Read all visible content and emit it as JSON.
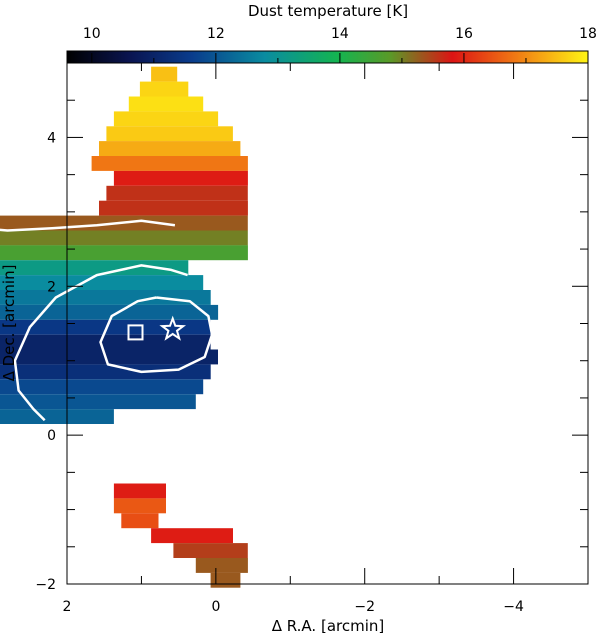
{
  "chart_data": {
    "type": "heatmap",
    "title": "",
    "colorbar": {
      "label": "Dust temperature [K]",
      "range": [
        9.6,
        18
      ],
      "ticks": [
        "10",
        "12",
        "14",
        "16",
        "18"
      ]
    },
    "xlabel": "Δ R.A. [arcmin]",
    "ylabel": "Δ Dec. [arcmin]",
    "xlim": [
      2,
      -5
    ],
    "ylim": [
      -2,
      5
    ],
    "xticks": [
      "2",
      "0",
      "−2",
      "−4"
    ],
    "yticks": [
      "−2",
      "0",
      "2",
      "4"
    ],
    "grid": false,
    "markers": [
      {
        "name": "star",
        "symbol": "star",
        "x": 0.58,
        "y": 1.42
      },
      {
        "name": "square",
        "symbol": "square",
        "x": 1.08,
        "y": 1.38
      }
    ],
    "contours": [
      {
        "level": "inner",
        "points": [
          [
            0.8,
            1.85
          ],
          [
            0.35,
            1.8
          ],
          [
            0.1,
            1.6
          ],
          [
            0.05,
            1.35
          ],
          [
            0.15,
            1.05
          ],
          [
            0.5,
            0.88
          ],
          [
            1.0,
            0.85
          ],
          [
            1.45,
            0.95
          ],
          [
            1.55,
            1.25
          ],
          [
            1.4,
            1.6
          ],
          [
            1.05,
            1.8
          ],
          [
            0.8,
            1.85
          ]
        ]
      },
      {
        "level": "middle",
        "points": [
          [
            0.38,
            2.15
          ],
          [
            0.6,
            2.22
          ],
          [
            1.0,
            2.28
          ],
          [
            1.6,
            2.15
          ],
          [
            2.15,
            1.85
          ],
          [
            2.5,
            1.45
          ],
          [
            2.7,
            1.0
          ],
          [
            2.65,
            0.6
          ],
          [
            2.45,
            0.35
          ],
          [
            2.3,
            0.2
          ]
        ]
      },
      {
        "level": "outer",
        "points": [
          [
            0.55,
            2.82
          ],
          [
            1.0,
            2.88
          ],
          [
            1.6,
            2.82
          ],
          [
            2.2,
            2.78
          ],
          [
            2.8,
            2.75
          ],
          [
            3.2,
            2.78
          ],
          [
            3.4,
            2.7
          ],
          [
            3.55,
            2.3
          ],
          [
            3.75,
            2.0
          ],
          [
            3.9,
            1.8
          ]
        ]
      }
    ],
    "cells": [
      {
        "x0": 0.52,
        "x1": 0.87,
        "y": 4.85,
        "v": 17.5
      },
      {
        "x0": 0.37,
        "x1": 1.02,
        "y": 4.65,
        "v": 17.7
      },
      {
        "x0": 0.17,
        "x1": 1.17,
        "y": 4.45,
        "v": 17.8
      },
      {
        "x0": -0.03,
        "x1": 1.37,
        "y": 4.25,
        "v": 17.7
      },
      {
        "x0": -0.23,
        "x1": 1.47,
        "y": 4.05,
        "v": 17.6
      },
      {
        "x0": -0.33,
        "x1": 1.57,
        "y": 3.85,
        "v": 17.3
      },
      {
        "x0": -0.43,
        "x1": 1.67,
        "y": 3.65,
        "v": 16.8
      },
      {
        "x0": -0.43,
        "x1": 1.37,
        "y": 3.45,
        "v": 15.9
      },
      {
        "x0": -0.43,
        "x1": 1.47,
        "y": 3.25,
        "v": 15.6
      },
      {
        "x0": -0.43,
        "x1": 1.57,
        "y": 3.05,
        "v": 15.6
      },
      {
        "x0": -0.43,
        "x1": 3.37,
        "y": 2.85,
        "v": 15.3
      },
      {
        "x0": -0.43,
        "x1": 3.57,
        "y": 2.65,
        "v": 15.0
      },
      {
        "x0": -0.43,
        "x1": 3.77,
        "y": 2.45,
        "v": 14.6
      },
      {
        "x0": 0.37,
        "x1": 3.87,
        "y": 2.25,
        "v": 13.2
      },
      {
        "x0": 0.17,
        "x1": 3.87,
        "y": 2.05,
        "v": 12.8
      },
      {
        "x0": 0.07,
        "x1": 3.77,
        "y": 1.85,
        "v": 12.5
      },
      {
        "x0": -0.03,
        "x1": 3.77,
        "y": 1.65,
        "v": 12.2
      },
      {
        "x0": 0.07,
        "x1": 3.67,
        "y": 1.45,
        "v": 11.5
      },
      {
        "x0": 0.07,
        "x1": 3.67,
        "y": 1.25,
        "v": 11.0
      },
      {
        "x0": -0.03,
        "x1": 3.57,
        "y": 1.05,
        "v": 11.0
      },
      {
        "x0": 0.07,
        "x1": 3.47,
        "y": 0.85,
        "v": 11.3
      },
      {
        "x0": 0.17,
        "x1": 3.37,
        "y": 0.65,
        "v": 11.8
      },
      {
        "x0": 0.27,
        "x1": 3.27,
        "y": 0.45,
        "v": 12.0
      },
      {
        "x0": 1.37,
        "x1": 3.07,
        "y": 0.25,
        "v": 12.2
      },
      {
        "x0": 0.67,
        "x1": 1.37,
        "y": -0.75,
        "v": 15.9
      },
      {
        "x0": 0.67,
        "x1": 1.37,
        "y": -0.95,
        "v": 16.5
      },
      {
        "x0": 0.77,
        "x1": 1.27,
        "y": -1.15,
        "v": 16.4
      },
      {
        "x0": -0.23,
        "x1": 0.87,
        "y": -1.35,
        "v": 15.9
      },
      {
        "x0": -0.43,
        "x1": 0.57,
        "y": -1.55,
        "v": 15.5
      },
      {
        "x0": -0.43,
        "x1": 0.27,
        "y": -1.75,
        "v": 15.3
      },
      {
        "x0": -0.33,
        "x1": 0.07,
        "y": -1.95,
        "v": 15.3
      }
    ]
  }
}
